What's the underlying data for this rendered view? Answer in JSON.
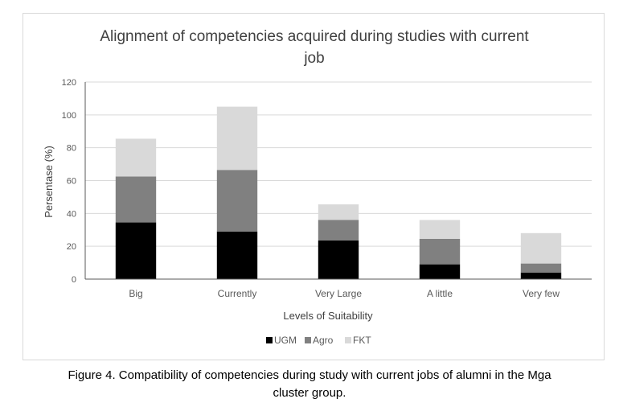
{
  "chart_data": {
    "type": "bar",
    "stacked": true,
    "title_lines": [
      "Alignment of competencies acquired during studies with current",
      "job"
    ],
    "xlabel": "Levels of Suitability",
    "ylabel": "Persentase (%)",
    "ylim": [
      0,
      120
    ],
    "yticks": [
      0,
      20,
      40,
      60,
      80,
      100,
      120
    ],
    "grid": true,
    "legend_position": "bottom",
    "categories": [
      "Big",
      "Currently",
      "Very Large",
      "A little",
      "Very few"
    ],
    "series": [
      {
        "name": "UGM",
        "color": "#000000",
        "values": [
          34.5,
          29,
          23.5,
          9,
          4
        ]
      },
      {
        "name": "Agro",
        "color": "#808080",
        "values": [
          28,
          37.5,
          12.5,
          15.5,
          5.5
        ]
      },
      {
        "name": "FKT",
        "color": "#d9d9d9",
        "values": [
          23,
          38.5,
          9.5,
          11.5,
          18.5
        ]
      }
    ]
  },
  "caption": {
    "line1": "Figure 4. Compatibility of competencies during study with current jobs of alumni in the Mga",
    "line2": "cluster group."
  }
}
